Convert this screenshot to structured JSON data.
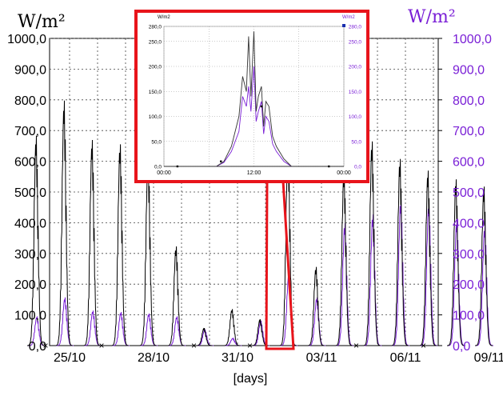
{
  "chart_data": {
    "type": "line",
    "unit_left": "W/m²",
    "unit_right": "W/m²",
    "xlabel": "[days]",
    "x_tick_labels": [
      "25/10",
      "28/10",
      "31/10",
      "03/11",
      "06/11",
      "09/11"
    ],
    "left_ticks": [
      "0,0",
      "100,0",
      "200,0",
      "300,0",
      "400,0",
      "500,0",
      "600,0",
      "700,0",
      "800,0",
      "900,0",
      "1000,0"
    ],
    "right_ticks": [
      "0,0",
      "100,0",
      "200,0",
      "300,0",
      "400,0",
      "500,0",
      "600,0",
      "700,0",
      "800,0",
      "900,0",
      "1000,0"
    ],
    "ylim": [
      0,
      1000
    ],
    "grid": true,
    "colors": {
      "black_series": "#000000",
      "purple_series": "#7a1fd6",
      "highlight": "#e8141b",
      "grid": "#444444"
    },
    "daily_peaks": {
      "days": [
        "24/10",
        "25/10",
        "26/10",
        "27/10",
        "28/10",
        "29/10",
        "30/10",
        "31/10",
        "01/11",
        "02/11",
        "03/11",
        "04/11",
        "05/11",
        "06/11",
        "07/11",
        "08/11",
        "09/11"
      ],
      "black": [
        720,
        840,
        705,
        690,
        650,
        340,
        60,
        125,
        90,
        700,
        270,
        600,
        700,
        640,
        600,
        570,
        545
      ],
      "purple": [
        100,
        165,
        120,
        115,
        110,
        100,
        55,
        25,
        85,
        245,
        165,
        420,
        450,
        500,
        490,
        430,
        410
      ]
    },
    "inset": {
      "unit_left": "W/m2",
      "unit_right": "W/m2",
      "ylim": [
        0,
        280
      ],
      "left_ticks": [
        "0,0",
        "50,0",
        "100,0",
        "150,0",
        "200,0",
        "250,0",
        "280,0"
      ],
      "right_ticks": [
        "0,0",
        "50,0",
        "100,0",
        "150,0",
        "200,0",
        "250,0",
        "280,0"
      ],
      "x_tick_labels": [
        "00:00",
        "12:00",
        "00:00"
      ],
      "black": [
        [
          7,
          0
        ],
        [
          8,
          10
        ],
        [
          9,
          40
        ],
        [
          10,
          100
        ],
        [
          10.5,
          180
        ],
        [
          11,
          150
        ],
        [
          11.3,
          260
        ],
        [
          11.6,
          140
        ],
        [
          12,
          270
        ],
        [
          12.3,
          110
        ],
        [
          12.6,
          140
        ],
        [
          13,
          160
        ],
        [
          13.3,
          80
        ],
        [
          13.6,
          130
        ],
        [
          14,
          120
        ],
        [
          14.5,
          60
        ],
        [
          15,
          40
        ],
        [
          16,
          15
        ],
        [
          17,
          0
        ]
      ],
      "purple": [
        [
          7,
          0
        ],
        [
          8,
          8
        ],
        [
          9,
          30
        ],
        [
          10,
          70
        ],
        [
          10.5,
          140
        ],
        [
          11,
          120
        ],
        [
          11.3,
          160
        ],
        [
          11.6,
          110
        ],
        [
          12,
          200
        ],
        [
          12.3,
          90
        ],
        [
          12.6,
          110
        ],
        [
          13,
          130
        ],
        [
          13.3,
          65
        ],
        [
          13.6,
          100
        ],
        [
          14,
          90
        ],
        [
          14.5,
          45
        ],
        [
          15,
          30
        ],
        [
          16,
          10
        ],
        [
          17,
          0
        ]
      ]
    }
  }
}
